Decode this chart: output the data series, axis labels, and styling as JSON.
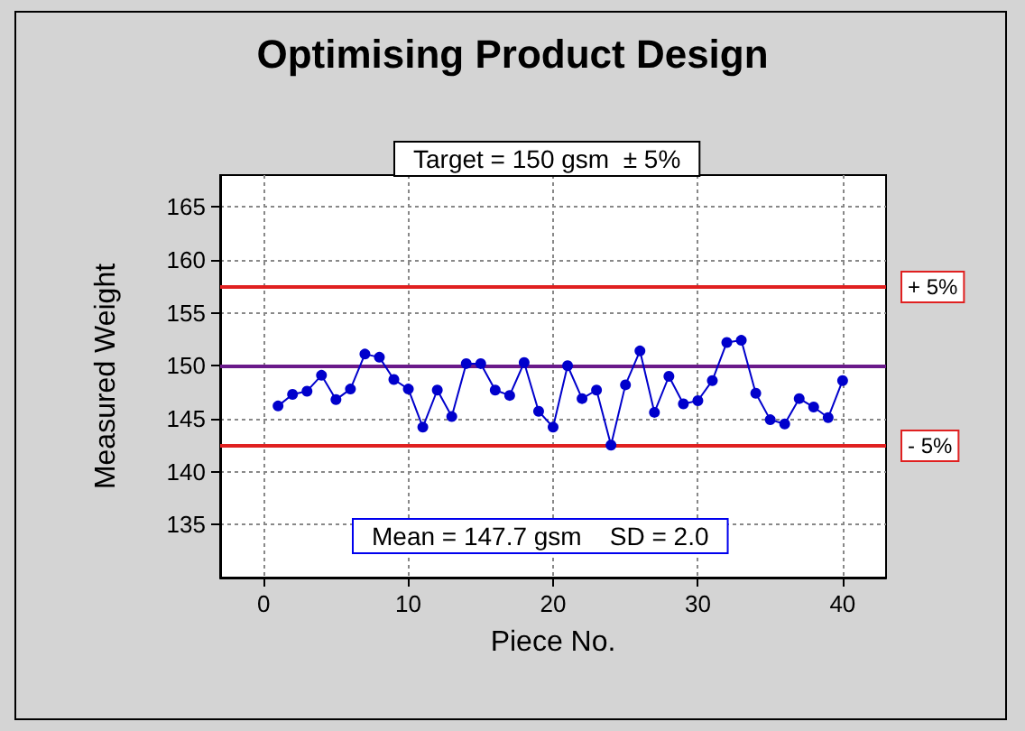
{
  "chart_data": {
    "type": "line",
    "title": "Optimising Product Design",
    "xlabel": "Piece No.",
    "ylabel": "Measured Weight",
    "x": [
      1,
      2,
      3,
      4,
      5,
      6,
      7,
      8,
      9,
      10,
      11,
      12,
      13,
      14,
      15,
      16,
      17,
      18,
      19,
      20,
      21,
      22,
      23,
      24,
      25,
      26,
      27,
      28,
      29,
      30,
      31,
      32,
      33,
      34,
      35,
      36,
      37,
      38,
      39,
      40
    ],
    "series": [
      {
        "color": "#0000cc",
        "values": [
          146.2,
          147.3,
          147.6,
          149.1,
          146.8,
          147.8,
          151.1,
          150.8,
          148.7,
          147.8,
          144.2,
          147.7,
          145.2,
          150.2,
          150.2,
          147.7,
          147.2,
          150.3,
          145.7,
          144.2,
          150.0,
          146.9,
          147.7,
          142.5,
          148.2,
          151.4,
          145.6,
          149.0,
          146.4,
          146.7,
          148.6,
          152.2,
          152.4,
          147.4,
          144.9,
          144.5,
          146.9,
          146.1,
          145.1,
          148.6
        ]
      }
    ],
    "xlim": [
      -3,
      43
    ],
    "xticks": [
      0,
      10,
      20,
      30,
      40
    ],
    "ylim": [
      130,
      168
    ],
    "yticks": [
      135,
      140,
      145,
      150,
      155,
      160,
      165
    ],
    "grid": true,
    "marker": "circle",
    "line_style": "solid",
    "ref_lines": [
      {
        "axis": "y",
        "value": 157.5,
        "label": null,
        "color": "#e02020"
      },
      {
        "axis": "y",
        "value": 150,
        "label": null,
        "color": "#6a1a8a"
      },
      {
        "axis": "y",
        "value": 142.5,
        "label": null,
        "color": "#e02020"
      }
    ],
    "annotations": [
      "Target = 150 gsm  ± 5%",
      "Mean = 147.7 gsm    SD = 2.0",
      "+ 5%",
      "- 5%"
    ]
  }
}
